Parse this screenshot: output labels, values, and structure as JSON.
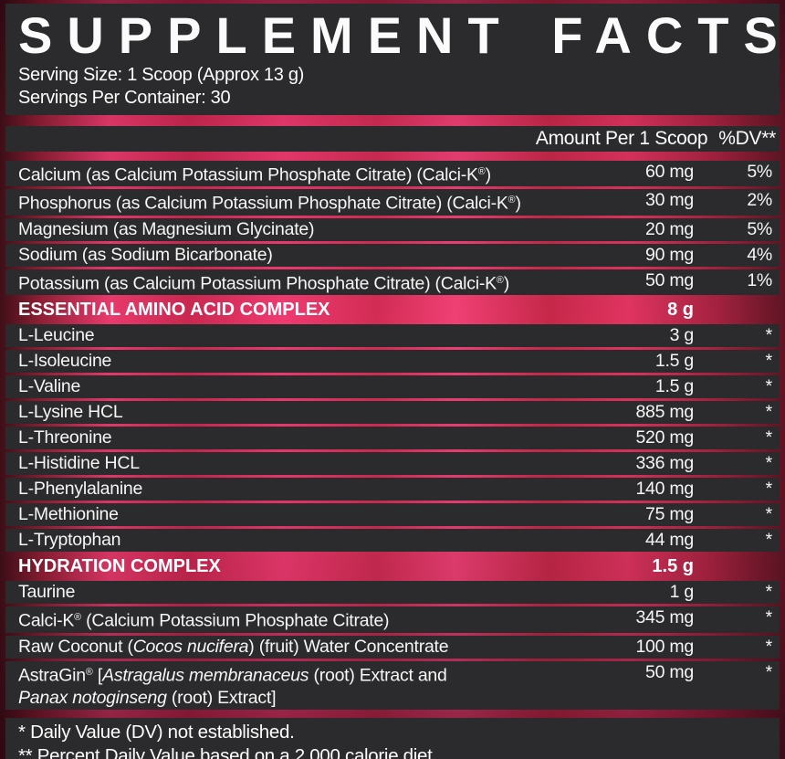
{
  "header": {
    "title": "SUPPLEMENT FACTS",
    "serving_size": "Serving Size: 1 Scoop (Approx 13 g)",
    "servings_per_container": "Servings Per Container: 30"
  },
  "columns": {
    "amount": "Amount Per 1 Scoop",
    "dv": "%DV**"
  },
  "table": {
    "rows": [
      {
        "type": "item",
        "name": [
          {
            "t": "Calcium (as Calcium Potassium Phosphate Citrate) (Calci-K®)"
          }
        ],
        "amount": "60 mg",
        "dv": "5%"
      },
      {
        "type": "item",
        "name": [
          {
            "t": "Phosphorus (as Calcium Potassium Phosphate Citrate) (Calci-K®)"
          }
        ],
        "amount": "30 mg",
        "dv": "2%"
      },
      {
        "type": "item",
        "name": [
          {
            "t": "Magnesium (as Magnesium Glycinate)"
          }
        ],
        "amount": "20 mg",
        "dv": "5%"
      },
      {
        "type": "item",
        "name": [
          {
            "t": "Sodium (as Sodium Bicarbonate)"
          }
        ],
        "amount": "90 mg",
        "dv": "4%"
      },
      {
        "type": "item",
        "name": [
          {
            "t": "Potassium (as Calcium Potassium Phosphate Citrate) (Calci-K®)"
          }
        ],
        "amount": "50 mg",
        "dv": "1%"
      },
      {
        "type": "section",
        "name": [
          {
            "t": "ESSENTIAL AMINO ACID COMPLEX"
          }
        ],
        "amount": "8 g",
        "dv": ""
      },
      {
        "type": "item",
        "name": [
          {
            "t": "L-Leucine"
          }
        ],
        "amount": "3 g",
        "dv": "*"
      },
      {
        "type": "item",
        "name": [
          {
            "t": "L-Isoleucine"
          }
        ],
        "amount": "1.5 g",
        "dv": "*"
      },
      {
        "type": "item",
        "name": [
          {
            "t": "L-Valine"
          }
        ],
        "amount": "1.5 g",
        "dv": "*"
      },
      {
        "type": "item",
        "name": [
          {
            "t": "L-Lysine HCL"
          }
        ],
        "amount": "885 mg",
        "dv": "*"
      },
      {
        "type": "item",
        "name": [
          {
            "t": "L-Threonine"
          }
        ],
        "amount": "520 mg",
        "dv": "*"
      },
      {
        "type": "item",
        "name": [
          {
            "t": "L-Histidine HCL"
          }
        ],
        "amount": "336 mg",
        "dv": "*"
      },
      {
        "type": "item",
        "name": [
          {
            "t": "L-Phenylalanine"
          }
        ],
        "amount": "140 mg",
        "dv": "*"
      },
      {
        "type": "item",
        "name": [
          {
            "t": "L-Methionine"
          }
        ],
        "amount": "75 mg",
        "dv": "*"
      },
      {
        "type": "item",
        "name": [
          {
            "t": "L-Tryptophan"
          }
        ],
        "amount": "44 mg",
        "dv": "*"
      },
      {
        "type": "section",
        "name": [
          {
            "t": "HYDRATION COMPLEX"
          }
        ],
        "amount": "1.5 g",
        "dv": ""
      },
      {
        "type": "item",
        "name": [
          {
            "t": "Taurine"
          }
        ],
        "amount": "1 g",
        "dv": "*"
      },
      {
        "type": "item",
        "name": [
          {
            "t": "Calci-K® (Calcium Potassium Phosphate Citrate)"
          }
        ],
        "amount": "345 mg",
        "dv": "*"
      },
      {
        "type": "item",
        "name": [
          {
            "t": "Raw Coconut ("
          },
          {
            "t": "Cocos nucifera",
            "i": true
          },
          {
            "t": ") (fruit) Water Concentrate"
          }
        ],
        "amount": "100 mg",
        "dv": "*"
      },
      {
        "type": "item",
        "name": [
          {
            "t": "AstraGin® ["
          },
          {
            "t": "Astragalus membranaceus",
            "i": true
          },
          {
            "t": " (root) Extract and"
          }
        ],
        "name2": [
          {
            "t": "Panax notoginseng",
            "i": true
          },
          {
            "t": " (root) Extract]"
          }
        ],
        "amount": "50 mg",
        "dv": "*"
      }
    ]
  },
  "footnotes": [
    "* Daily Value (DV) not established.",
    "** Percent Daily Value based on a 2,000 calorie diet."
  ],
  "colors": {
    "panel_charcoal": "#2b2a2c",
    "accent_pink_bright": "#ef3a70",
    "accent_red_dark": "#8c1e33",
    "text": "#ffffff"
  }
}
